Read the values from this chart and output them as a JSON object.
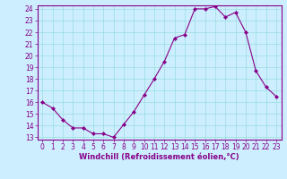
{
  "x": [
    0,
    1,
    2,
    3,
    4,
    5,
    6,
    7,
    8,
    9,
    10,
    11,
    12,
    13,
    14,
    15,
    16,
    17,
    18,
    19,
    20,
    21,
    22,
    23
  ],
  "y": [
    16.0,
    15.5,
    14.5,
    13.8,
    13.8,
    13.3,
    13.3,
    13.0,
    14.1,
    15.2,
    16.6,
    18.0,
    19.5,
    21.5,
    21.8,
    24.0,
    24.0,
    24.2,
    23.3,
    23.7,
    22.0,
    18.7,
    17.3,
    16.5
  ],
  "line_color": "#880088",
  "marker": "D",
  "marker_size": 2.0,
  "bg_color": "#cceeff",
  "grid_color": "#99dddd",
  "xlabel": "Windchill (Refroidissement éolien,°C)",
  "xlabel_color": "#880088",
  "tick_color": "#880088",
  "spine_color": "#880088",
  "ylim": [
    13,
    24
  ],
  "xlim": [
    -0.5,
    23.5
  ],
  "yticks": [
    13,
    14,
    15,
    16,
    17,
    18,
    19,
    20,
    21,
    22,
    23,
    24
  ],
  "xticks": [
    0,
    1,
    2,
    3,
    4,
    5,
    6,
    7,
    8,
    9,
    10,
    11,
    12,
    13,
    14,
    15,
    16,
    17,
    18,
    19,
    20,
    21,
    22,
    23
  ],
  "tick_fontsize": 5.5,
  "xlabel_fontsize": 6.0
}
